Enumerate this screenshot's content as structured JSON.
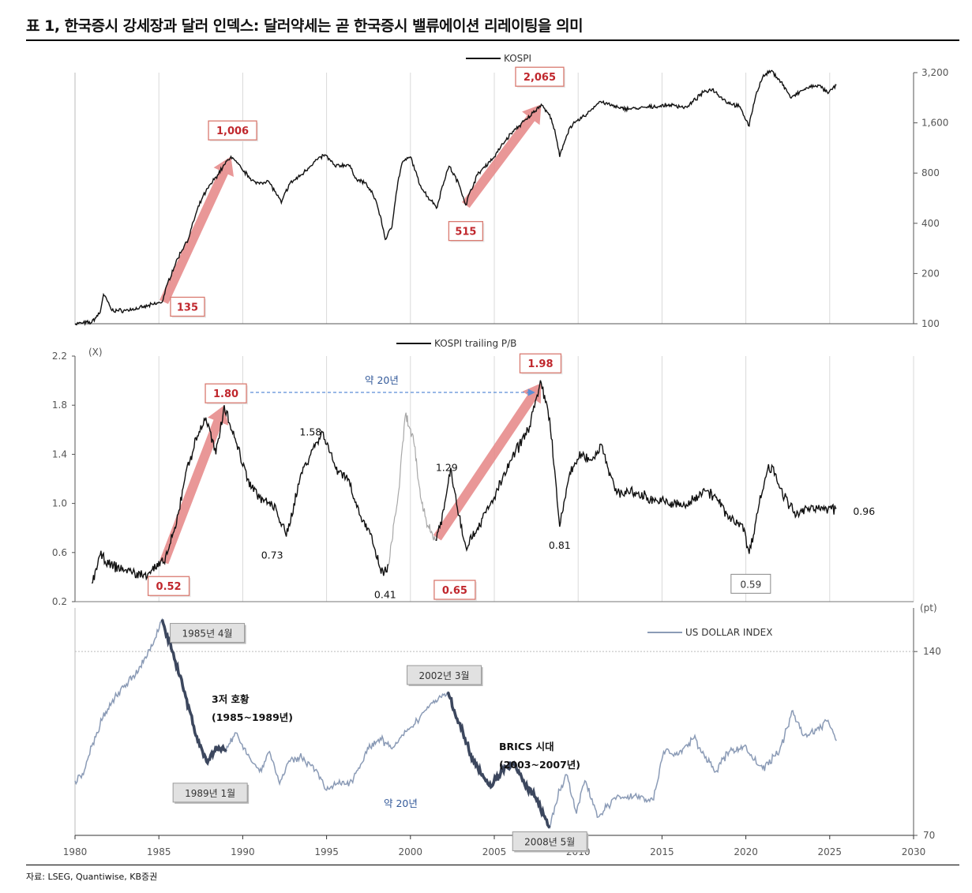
{
  "title": "표 1, 한국증시 강세장과 달러 인덱스: 달러약세는 곧 한국증시 밸류에이션 리레이팅을 의미",
  "source": "자료: LSEG, Quantiwise, KB증권",
  "colors": {
    "kospi_line": "#111111",
    "pb_line": "#111111",
    "pb_gap_line": "#a8a8a8",
    "dxy_line": "#8b9bb6",
    "dxy_highlight": "#3c475e",
    "arrow_fill": "#e58585",
    "callout_border_red": "#d97a70",
    "callout_red_text": "#c0272d",
    "callout_grey_fill": "#e1e1e1",
    "span_arrow": "#5b8ed6",
    "grid": "#d9d9d9"
  },
  "chart_data": [
    {
      "type": "line",
      "name": "kospi",
      "legend": "KOSPI",
      "y_scale": "log",
      "ylim": [
        100,
        3200
      ],
      "yticks": [
        "100",
        "200",
        "400",
        "800",
        "1,600",
        "3,200"
      ],
      "xlim": [
        1980,
        2030
      ],
      "anchors": [
        [
          1980.0,
          100
        ],
        [
          1981.0,
          102
        ],
        [
          1981.5,
          117
        ],
        [
          1981.7,
          150
        ],
        [
          1982.2,
          120
        ],
        [
          1983.0,
          120
        ],
        [
          1984.0,
          125
        ],
        [
          1985.2,
          135
        ],
        [
          1986.0,
          230
        ],
        [
          1986.8,
          330
        ],
        [
          1987.6,
          570
        ],
        [
          1988.5,
          780
        ],
        [
          1989.3,
          1006
        ],
        [
          1990.0,
          830
        ],
        [
          1990.8,
          690
        ],
        [
          1991.5,
          720
        ],
        [
          1992.3,
          530
        ],
        [
          1992.8,
          690
        ],
        [
          1993.5,
          780
        ],
        [
          1994.3,
          940
        ],
        [
          1994.9,
          1030
        ],
        [
          1995.5,
          880
        ],
        [
          1996.3,
          900
        ],
        [
          1996.8,
          730
        ],
        [
          1997.3,
          700
        ],
        [
          1997.9,
          560
        ],
        [
          1998.5,
          320
        ],
        [
          1998.9,
          380
        ],
        [
          1999.5,
          920
        ],
        [
          2000.0,
          1000
        ],
        [
          2000.5,
          700
        ],
        [
          2001.0,
          580
        ],
        [
          2001.6,
          500
        ],
        [
          2002.3,
          880
        ],
        [
          2002.9,
          680
        ],
        [
          2003.3,
          515
        ],
        [
          2004.0,
          780
        ],
        [
          2005.0,
          1000
        ],
        [
          2006.0,
          1380
        ],
        [
          2007.0,
          1700
        ],
        [
          2007.8,
          2065
        ],
        [
          2008.4,
          1700
        ],
        [
          2008.9,
          1000
        ],
        [
          2009.5,
          1500
        ],
        [
          2010.5,
          1800
        ],
        [
          2011.3,
          2150
        ],
        [
          2012.5,
          1950
        ],
        [
          2013.5,
          1950
        ],
        [
          2014.5,
          2000
        ],
        [
          2015.5,
          2050
        ],
        [
          2016.5,
          1980
        ],
        [
          2017.5,
          2450
        ],
        [
          2018.0,
          2550
        ],
        [
          2018.8,
          2150
        ],
        [
          2019.6,
          2000
        ],
        [
          2020.2,
          1530
        ],
        [
          2020.6,
          2350
        ],
        [
          2021.0,
          3000
        ],
        [
          2021.5,
          3280
        ],
        [
          2022.0,
          2900
        ],
        [
          2022.7,
          2250
        ],
        [
          2023.5,
          2550
        ],
        [
          2024.3,
          2700
        ],
        [
          2024.9,
          2400
        ],
        [
          2025.4,
          2700
        ]
      ],
      "annotations": [
        {
          "label": "1,006",
          "x": 1989.3,
          "y": 1006
        },
        {
          "label": "135",
          "x": 1985.2,
          "y": 135
        },
        {
          "label": "2,065",
          "x": 2007.8,
          "y": 2065
        },
        {
          "label": "515",
          "x": 2003.3,
          "y": 515
        }
      ]
    },
    {
      "type": "line",
      "name": "kospi_pb",
      "legend": "KOSPI trailing P/B",
      "unit_label": "(X)",
      "ylim": [
        0.2,
        2.2
      ],
      "yticks": [
        "0.2",
        "0.6",
        "1.0",
        "1.4",
        "1.8",
        "2.2"
      ],
      "xlim": [
        1980,
        2030
      ],
      "anchors": [
        [
          1981.0,
          0.35
        ],
        [
          1981.5,
          0.58
        ],
        [
          1982.0,
          0.5
        ],
        [
          1983.0,
          0.46
        ],
        [
          1984.0,
          0.41
        ],
        [
          1985.3,
          0.52
        ],
        [
          1986.0,
          0.8
        ],
        [
          1986.6,
          1.25
        ],
        [
          1987.3,
          1.55
        ],
        [
          1987.8,
          1.7
        ],
        [
          1988.4,
          1.4
        ],
        [
          1988.9,
          1.8
        ],
        [
          1989.6,
          1.5
        ],
        [
          1990.3,
          1.2
        ],
        [
          1991.0,
          1.05
        ],
        [
          1992.0,
          0.95
        ],
        [
          1992.6,
          0.73
        ],
        [
          1993.5,
          1.25
        ],
        [
          1994.2,
          1.45
        ],
        [
          1994.8,
          1.58
        ],
        [
          1995.5,
          1.3
        ],
        [
          1996.3,
          1.2
        ],
        [
          1997.0,
          0.9
        ],
        [
          1997.6,
          0.75
        ],
        [
          1998.0,
          0.55
        ],
        [
          1998.4,
          0.41
        ],
        [
          1998.7,
          0.5
        ]
      ],
      "gap_anchors": [
        [
          1998.7,
          0.5
        ],
        [
          1999.3,
          1.1
        ],
        [
          1999.7,
          1.72
        ],
        [
          2000.2,
          1.5
        ],
        [
          2000.6,
          1.05
        ],
        [
          2001.1,
          0.8
        ],
        [
          2001.5,
          0.7
        ]
      ],
      "anchors_after_gap": [
        [
          2001.5,
          0.7
        ],
        [
          2002.0,
          0.95
        ],
        [
          2002.4,
          1.29
        ],
        [
          2002.9,
          0.9
        ],
        [
          2003.3,
          0.65
        ],
        [
          2004.0,
          0.8
        ],
        [
          2005.0,
          1.05
        ],
        [
          2006.0,
          1.35
        ],
        [
          2007.0,
          1.6
        ],
        [
          2007.8,
          1.98
        ],
        [
          2008.3,
          1.7
        ],
        [
          2008.9,
          0.81
        ],
        [
          2009.5,
          1.25
        ],
        [
          2010.2,
          1.4
        ],
        [
          2010.8,
          1.35
        ],
        [
          2011.4,
          1.48
        ],
        [
          2012.2,
          1.1
        ],
        [
          2013.5,
          1.08
        ],
        [
          2014.5,
          1.03
        ],
        [
          2015.5,
          1.0
        ],
        [
          2016.5,
          0.98
        ],
        [
          2017.5,
          1.12
        ],
        [
          2018.2,
          1.05
        ],
        [
          2019.0,
          0.88
        ],
        [
          2019.8,
          0.83
        ],
        [
          2020.2,
          0.59
        ],
        [
          2020.8,
          1.0
        ],
        [
          2021.3,
          1.28
        ],
        [
          2021.6,
          1.3
        ],
        [
          2022.3,
          1.05
        ],
        [
          2023.0,
          0.9
        ],
        [
          2024.0,
          0.98
        ],
        [
          2024.6,
          0.95
        ],
        [
          2025.4,
          0.96
        ]
      ],
      "annotations": [
        {
          "label": "1.80",
          "x": 1988.9,
          "y": 1.8
        },
        {
          "label": "0.52",
          "x": 1985.3,
          "y": 0.52
        },
        {
          "label": "1.98",
          "x": 2007.8,
          "y": 1.98
        },
        {
          "label": "0.65",
          "x": 2003.3,
          "y": 0.65
        },
        {
          "label": "1.58",
          "x": 1994.8,
          "y": 1.58
        },
        {
          "label": "0.73",
          "x": 1992.6,
          "y": 0.73
        },
        {
          "label": "0.41",
          "x": 1998.4,
          "y": 0.41
        },
        {
          "label": "1.29",
          "x": 2002.4,
          "y": 1.29
        },
        {
          "label": "0.81",
          "x": 2008.9,
          "y": 0.81
        },
        {
          "label": "0.59",
          "x": 2020.2,
          "y": 0.59
        },
        {
          "label": "0.96",
          "x": 2025.4,
          "y": 0.96
        }
      ],
      "span_label": "약 20년"
    },
    {
      "type": "line",
      "name": "us_dollar_index",
      "legend": "US DOLLAR INDEX",
      "unit_label": "(pt)",
      "y_scale": "log",
      "ylim": [
        70,
        165
      ],
      "yticks": [
        "70",
        "140"
      ],
      "xlim": [
        1980,
        2030
      ],
      "x_ticks": [
        "1980",
        "1985",
        "1990",
        "1995",
        "2000",
        "2005",
        "2010",
        "2015",
        "2020",
        "2025",
        "2030"
      ],
      "anchors": [
        [
          1980.0,
          86
        ],
        [
          1980.5,
          88
        ],
        [
          1981.0,
          98
        ],
        [
          1981.6,
          108
        ],
        [
          1982.6,
          120
        ],
        [
          1983.6,
          128
        ],
        [
          1984.6,
          143
        ],
        [
          1985.2,
          158
        ],
        [
          1985.8,
          140
        ],
        [
          1986.6,
          118
        ],
        [
          1987.2,
          102
        ],
        [
          1987.9,
          92
        ],
        [
          1988.4,
          98
        ],
        [
          1989.0,
          96
        ],
        [
          1989.6,
          103
        ],
        [
          1990.4,
          94
        ],
        [
          1991.0,
          89
        ],
        [
          1991.6,
          96
        ],
        [
          1992.2,
          85
        ],
        [
          1992.7,
          92
        ],
        [
          1993.4,
          94
        ],
        [
          1994.2,
          91
        ],
        [
          1995.0,
          83
        ],
        [
          1995.7,
          85
        ],
        [
          1996.5,
          86
        ],
        [
          1997.5,
          97
        ],
        [
          1998.2,
          101
        ],
        [
          1998.9,
          97
        ],
        [
          1999.6,
          102
        ],
        [
          2000.4,
          108
        ],
        [
          2001.2,
          115
        ],
        [
          2001.8,
          118
        ],
        [
          2002.2,
          120
        ],
        [
          2002.9,
          107
        ],
        [
          2003.6,
          95
        ],
        [
          2004.3,
          88
        ],
        [
          2004.8,
          84
        ],
        [
          2005.5,
          90
        ],
        [
          2006.1,
          92
        ],
        [
          2006.8,
          85
        ],
        [
          2007.4,
          81
        ],
        [
          2008.3,
          72
        ],
        [
          2008.9,
          83
        ],
        [
          2009.3,
          88
        ],
        [
          2009.9,
          76
        ],
        [
          2010.4,
          86
        ],
        [
          2011.2,
          75
        ],
        [
          2012.3,
          81
        ],
        [
          2013.5,
          81
        ],
        [
          2014.5,
          80
        ],
        [
          2015.1,
          96
        ],
        [
          2016.0,
          95
        ],
        [
          2016.9,
          101
        ],
        [
          2017.5,
          95
        ],
        [
          2018.2,
          89
        ],
        [
          2019.0,
          96
        ],
        [
          2019.9,
          98
        ],
        [
          2020.5,
          93
        ],
        [
          2021.0,
          90
        ],
        [
          2022.0,
          96
        ],
        [
          2022.8,
          112
        ],
        [
          2023.4,
          102
        ],
        [
          2024.2,
          104
        ],
        [
          2024.9,
          108
        ],
        [
          2025.4,
          100
        ]
      ],
      "highlight_ranges": [
        [
          1985.2,
          1989.0
        ],
        [
          2002.2,
          2008.3
        ]
      ],
      "annotations": [
        {
          "label": "1985년 4월",
          "x": 1985.3,
          "y": 158
        },
        {
          "label": "1989년 1월",
          "x": 1989.0,
          "y": 96
        },
        {
          "label": "2002년 3월",
          "x": 2002.2,
          "y": 120
        },
        {
          "label": "2008년 5월",
          "x": 2008.4,
          "y": 72
        }
      ],
      "text_labels": {
        "period1_title": "3저 호황",
        "period1_years": "(1985~1989년)",
        "period2_title": "BRICS 시대",
        "period2_years": "(2003~2007년)",
        "span_label": "약 20년"
      }
    }
  ]
}
